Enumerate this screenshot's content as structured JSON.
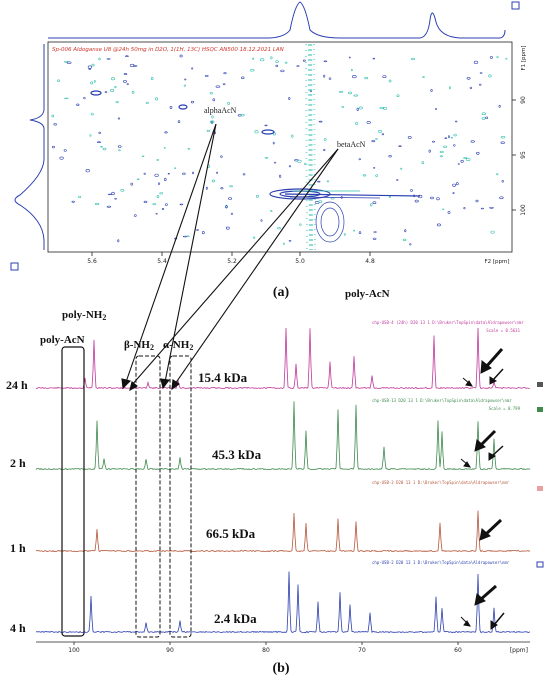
{
  "hsqc": {
    "header": "Sp-006 Aldoganse U8 @24h 50mg in D2O, 1(1H, 13C) HSQC AN500 18.12.2021 LAN",
    "f1_axis_label": "F1 [ppm]",
    "f2_axis_label": "F2 [ppm]",
    "f1_ticks": [
      "90",
      "95",
      "100"
    ],
    "f2_ticks": [
      "5.6",
      "5.4",
      "5.2",
      "5.0",
      "4.8"
    ],
    "annotation_alpha": "alphaAcN",
    "annotation_beta": "betaAcN",
    "panel_label": "(a)",
    "bottom_label": "poly-AcN"
  },
  "spectra": {
    "panel_label": "(b)",
    "label_poly_nh2": "poly-NH2",
    "label_poly_acn": "poly-AcN",
    "label_beta_nh2": "β-NH2",
    "label_alpha_nh2": "α-NH2",
    "x_axis_unit": "[ppm]",
    "x_ticks": [
      "100",
      "90",
      "80",
      "70",
      "60"
    ],
    "traces": [
      {
        "time": "24 h",
        "mw": "15.4 kDa",
        "color": "#c0399a",
        "header": "chp-USB-4 (24h) D20  13  1  D:\\Bruker\\TopSpin\\data\\Aldrapowser\\nmr",
        "scale": "Scale = 0.5631"
      },
      {
        "time": "2 h",
        "mw": "45.3 kDa",
        "color": "#3f8a4d",
        "header": "chp-USB-13 D20  13  1  D:\\Bruker\\TopSpin\\data\\Aldrapowser\\nmr",
        "scale": "Scale = 0.799"
      },
      {
        "time": "1 h",
        "mw": "66.5 kDa",
        "color": "#b5573a",
        "header": "chp-USB-3 D20  13  1  D:\\Bruker\\TopSpin\\data\\Aldrapowser\\nmr",
        "scale": ""
      },
      {
        "time": "4 h",
        "mw": "2.4 kDa",
        "color": "#2c3fb0",
        "header": "chp-USB-2 D20  13  1  D:\\Bruker\\TopSpin\\data\\Aldrapowser\\nmr",
        "scale": ""
      }
    ]
  }
}
